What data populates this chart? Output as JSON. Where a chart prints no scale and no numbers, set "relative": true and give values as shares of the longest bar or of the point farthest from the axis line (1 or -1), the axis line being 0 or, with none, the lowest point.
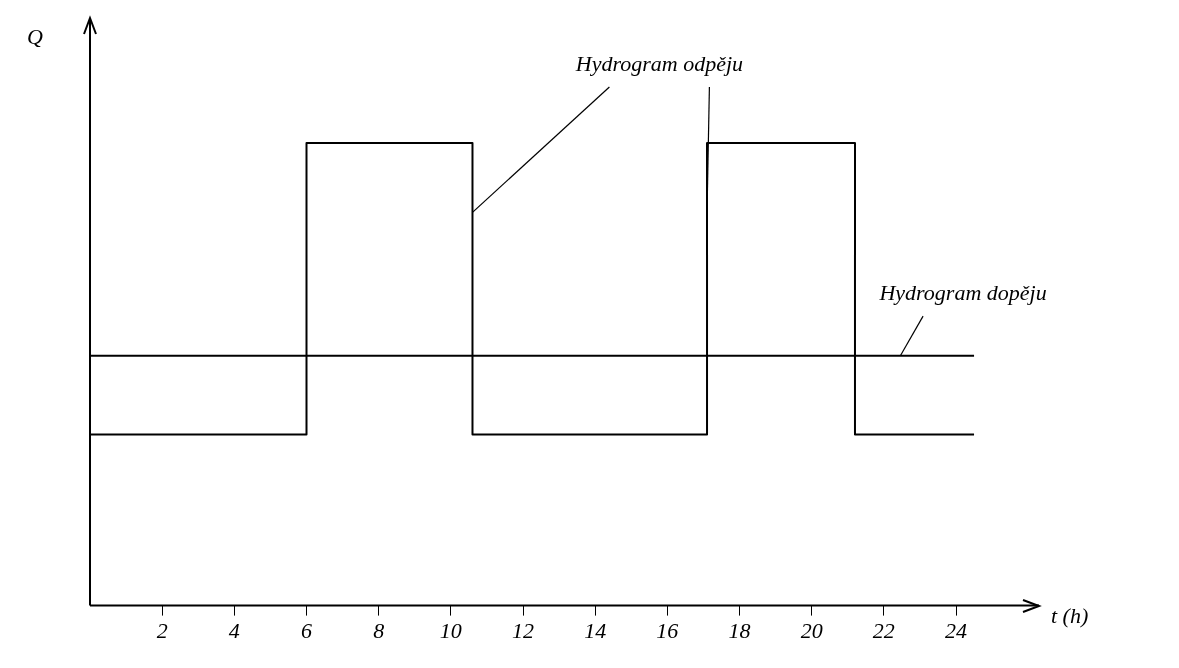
{
  "chart_data": {
    "type": "step",
    "relative": true,
    "xlabel": "t (h)",
    "ylabel": "Q",
    "xlim": [
      0,
      26.3
    ],
    "xticks": [
      2,
      4,
      6,
      8,
      10,
      12,
      14,
      16,
      18,
      20,
      22,
      24
    ],
    "legend": false,
    "grid": false,
    "marker": "none",
    "series": [
      {
        "name": "Hydrogram odpěju",
        "color": "#000000",
        "x": [
          0,
          6,
          10.6,
          17.1,
          21.2,
          24.5
        ],
        "values": [
          0.37,
          1,
          0.37,
          1,
          0.37,
          0.37
        ]
      },
      {
        "name": "Hydrogram dopěju",
        "color": "#000000",
        "x": [
          0,
          24.5
        ],
        "values": [
          0.54,
          0.54
        ]
      }
    ]
  }
}
